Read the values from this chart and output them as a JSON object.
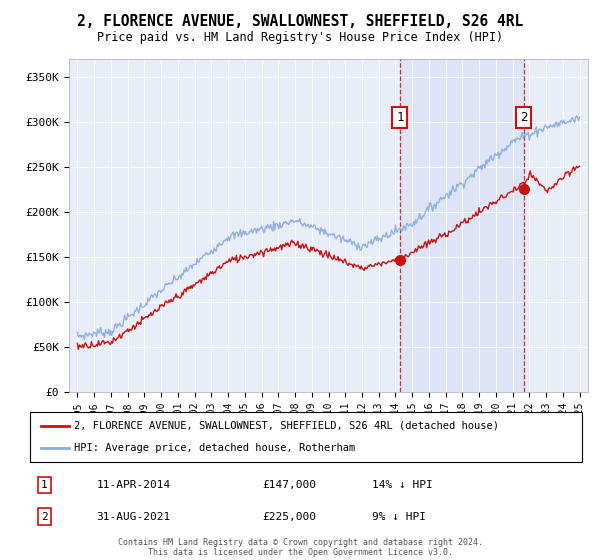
{
  "title": "2, FLORENCE AVENUE, SWALLOWNEST, SHEFFIELD, S26 4RL",
  "subtitle": "Price paid vs. HM Land Registry's House Price Index (HPI)",
  "legend_label_red": "2, FLORENCE AVENUE, SWALLOWNEST, SHEFFIELD, S26 4RL (detached house)",
  "legend_label_blue": "HPI: Average price, detached house, Rotherham",
  "annotation1_date": "11-APR-2014",
  "annotation1_price": "£147,000",
  "annotation1_hpi": "14% ↓ HPI",
  "annotation1_year": 2014.27,
  "annotation1_value": 147000,
  "annotation2_date": "31-AUG-2021",
  "annotation2_price": "£225,000",
  "annotation2_hpi": "9% ↓ HPI",
  "annotation2_year": 2021.66,
  "annotation2_value": 225000,
  "footer": "Contains HM Land Registry data © Crown copyright and database right 2024.\nThis data is licensed under the Open Government Licence v3.0.",
  "ylim": [
    0,
    370000
  ],
  "yticks": [
    0,
    50000,
    100000,
    150000,
    200000,
    250000,
    300000,
    350000
  ],
  "ytick_labels": [
    "£0",
    "£50K",
    "£100K",
    "£150K",
    "£200K",
    "£250K",
    "£300K",
    "£350K"
  ],
  "xlim": [
    1994.5,
    2025.5
  ],
  "plot_bg": "#e8eef8",
  "red_color": "#cc1111",
  "blue_color": "#88aadd"
}
